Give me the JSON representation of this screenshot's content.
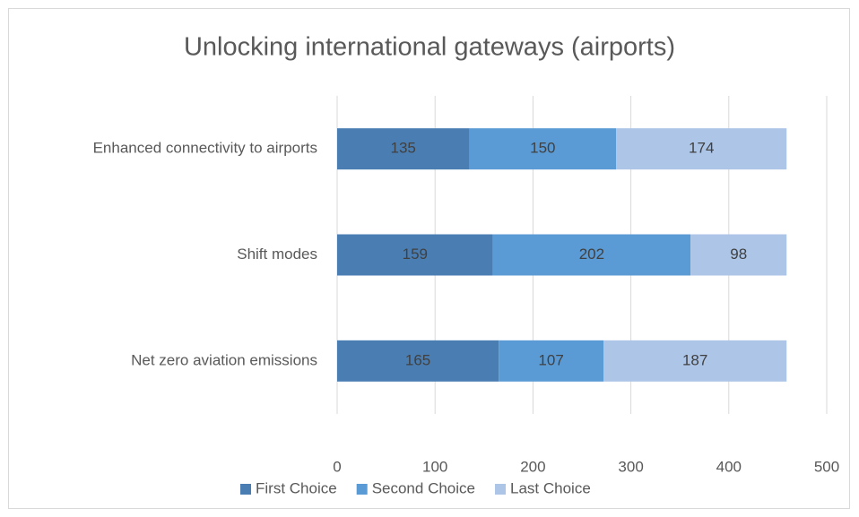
{
  "chart_data": {
    "type": "stacked_barh",
    "title": "Unlocking international gateways (airports)",
    "categories": [
      "Enhanced connectivity to airports",
      "Shift modes",
      "Net zero aviation emissions"
    ],
    "series": [
      {
        "name": "First Choice",
        "color": "#4a7eb3",
        "values": [
          135,
          159,
          165
        ]
      },
      {
        "name": "Second Choice",
        "color": "#5b9bd5",
        "values": [
          150,
          202,
          107
        ]
      },
      {
        "name": "Last Choice",
        "color": "#adc5e7",
        "values": [
          174,
          98,
          187
        ]
      }
    ],
    "xlim": [
      0,
      500
    ],
    "xticks": [
      0,
      100,
      200,
      300,
      400,
      500
    ],
    "grid": true,
    "legend": "bottom"
  }
}
